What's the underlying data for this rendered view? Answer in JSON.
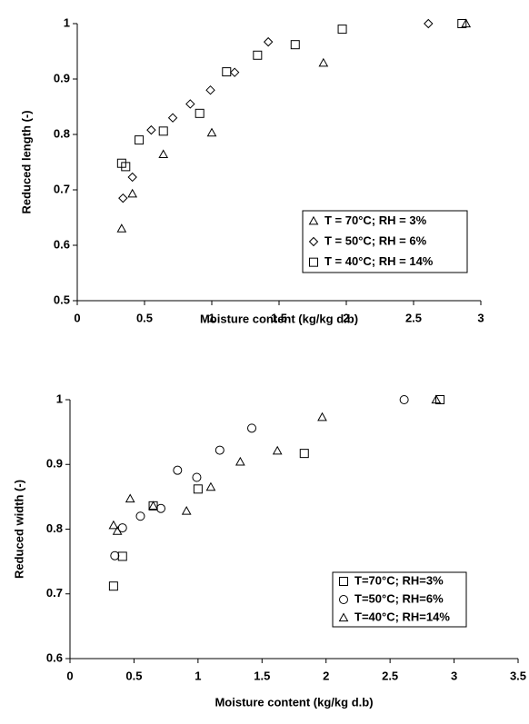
{
  "chart_data": [
    {
      "type": "scatter",
      "x_label": "Moisture content (kg/kg d.b)",
      "y_label": "Reduced length (-)",
      "xlim": [
        0,
        3
      ],
      "xticks": [
        0,
        0.5,
        1,
        1.5,
        2,
        2.5,
        3
      ],
      "ylim": [
        0.5,
        1
      ],
      "yticks": [
        0.5,
        0.6,
        0.7,
        0.8,
        0.9,
        1
      ],
      "series": [
        {
          "name": "T = 70°C; RH = 3%",
          "marker": "triangle",
          "color": "#000000",
          "x": [
            0.33,
            0.41,
            0.64,
            1.0,
            1.83,
            2.89
          ],
          "values": [
            0.63,
            0.693,
            0.764,
            0.803,
            0.929,
            1.0
          ]
        },
        {
          "name": "T = 50°C; RH = 6%",
          "marker": "diamond",
          "color": "#000000",
          "x": [
            0.34,
            0.41,
            0.55,
            0.71,
            0.84,
            0.99,
            1.17,
            1.42,
            2.61
          ],
          "values": [
            0.685,
            0.723,
            0.808,
            0.83,
            0.855,
            0.88,
            0.912,
            0.967,
            1.0
          ]
        },
        {
          "name": "T = 40°C; RH = 14%",
          "marker": "square",
          "color": "#000000",
          "x": [
            0.33,
            0.36,
            0.46,
            0.64,
            0.91,
            1.11,
            1.34,
            1.62,
            1.97,
            2.86
          ],
          "values": [
            0.748,
            0.742,
            0.79,
            0.806,
            0.838,
            0.913,
            0.943,
            0.962,
            0.99,
            1.0
          ]
        }
      ]
    },
    {
      "type": "scatter",
      "x_label": "Moisture content (kg/kg d.b)",
      "y_label": "Reduced width (-)",
      "xlim": [
        0,
        3.5
      ],
      "xticks": [
        0,
        0.5,
        1,
        1.5,
        2,
        2.5,
        3,
        3.5
      ],
      "ylim": [
        0.6,
        1
      ],
      "yticks": [
        0.6,
        0.7,
        0.8,
        0.9,
        1
      ],
      "series": [
        {
          "name": "T=70°C; RH=3%",
          "marker": "square",
          "color": "#000000",
          "x": [
            0.34,
            0.41,
            0.65,
            1.0,
            1.83,
            2.89
          ],
          "values": [
            0.712,
            0.758,
            0.836,
            0.862,
            0.917,
            1.0
          ]
        },
        {
          "name": "T=50°C; RH=6%",
          "marker": "circle",
          "color": "#000000",
          "x": [
            0.35,
            0.41,
            0.55,
            0.71,
            0.84,
            0.99,
            1.17,
            1.42,
            2.61
          ],
          "values": [
            0.759,
            0.802,
            0.82,
            0.832,
            0.891,
            0.88,
            0.922,
            0.956,
            1.0
          ]
        },
        {
          "name": "T=40°C; RH=14%",
          "marker": "triangle",
          "color": "#000000",
          "x": [
            0.34,
            0.37,
            0.47,
            0.65,
            0.91,
            1.1,
            1.33,
            1.62,
            1.97,
            2.86
          ],
          "values": [
            0.806,
            0.797,
            0.847,
            0.836,
            0.828,
            0.865,
            0.904,
            0.921,
            0.973,
            1.0
          ]
        }
      ]
    }
  ]
}
